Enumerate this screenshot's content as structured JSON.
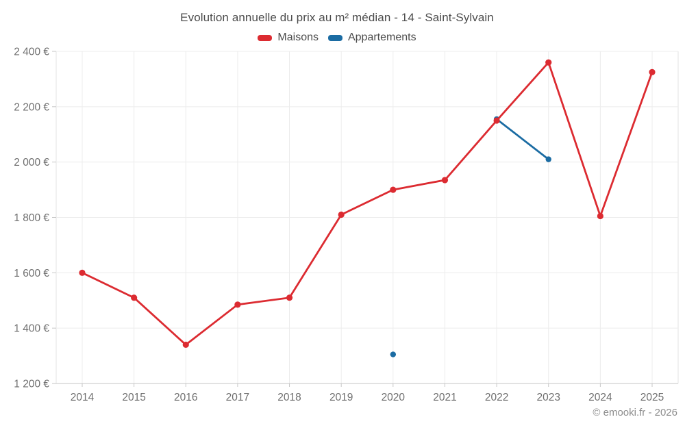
{
  "chart_data": {
    "type": "line",
    "title": "Evolution annuelle du prix au m² médian - 14 - Saint-Sylvain",
    "categories": [
      "2014",
      "2015",
      "2016",
      "2017",
      "2018",
      "2019",
      "2020",
      "2021",
      "2022",
      "2023",
      "2024",
      "2025"
    ],
    "series": [
      {
        "name": "Maisons",
        "color": "#dc2b31",
        "point_radius": 4.6,
        "values": [
          1600,
          1510,
          1340,
          1485,
          1510,
          1810,
          1900,
          1935,
          2150,
          2360,
          1805,
          2325
        ]
      },
      {
        "name": "Appartements",
        "color": "#1b6ca3",
        "point_radius": 4.2,
        "values": [
          null,
          null,
          null,
          null,
          null,
          null,
          1305,
          null,
          2155,
          2010,
          null,
          null
        ]
      }
    ],
    "xlabel": "",
    "ylabel": "",
    "ylim": [
      1200,
      2400
    ],
    "ytick_step": 200,
    "ytick_suffix": " €",
    "grid": true,
    "legend_position": "top",
    "footer": "© emooki.fr - 2026"
  },
  "colors": {
    "grid_line": "#ececec",
    "plot_border": "#e3e3e3",
    "axis_line": "#c6c6c6",
    "tick": "#c6c6c6",
    "axis_label": "#6f6f6f"
  }
}
